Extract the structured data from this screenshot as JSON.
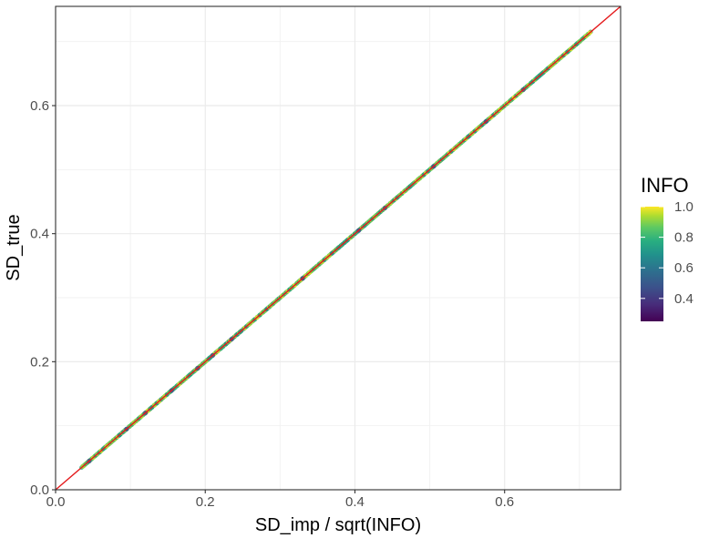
{
  "chart_data": {
    "type": "scatter",
    "title": "",
    "xlabel": "SD_imp / sqrt(INFO)",
    "ylabel": "SD_true",
    "xlim": [
      0,
      0.755
    ],
    "ylim": [
      0,
      0.755
    ],
    "x_ticks": [
      0.0,
      0.2,
      0.4,
      0.6
    ],
    "y_ticks": [
      0.0,
      0.2,
      0.4,
      0.6
    ],
    "x_tick_labels": [
      "0.0",
      "0.2",
      "0.4",
      "0.6"
    ],
    "y_tick_labels": [
      "0.0",
      "0.2",
      "0.4",
      "0.6"
    ],
    "grid": true,
    "reference_line": {
      "slope": 1,
      "intercept": 0,
      "color": "#e41a1c"
    },
    "points_x_range": [
      0.035,
      0.715
    ],
    "points_note_y_equals_x": true,
    "color_variable": "INFO",
    "legend": {
      "title": "INFO",
      "placement": "right",
      "range": [
        0.25,
        1.0
      ],
      "ticks": [
        1.0,
        0.8,
        0.6,
        0.4
      ],
      "tick_labels": [
        "1.0",
        "0.8",
        "0.6",
        "0.4"
      ],
      "colormap": "viridis"
    }
  }
}
